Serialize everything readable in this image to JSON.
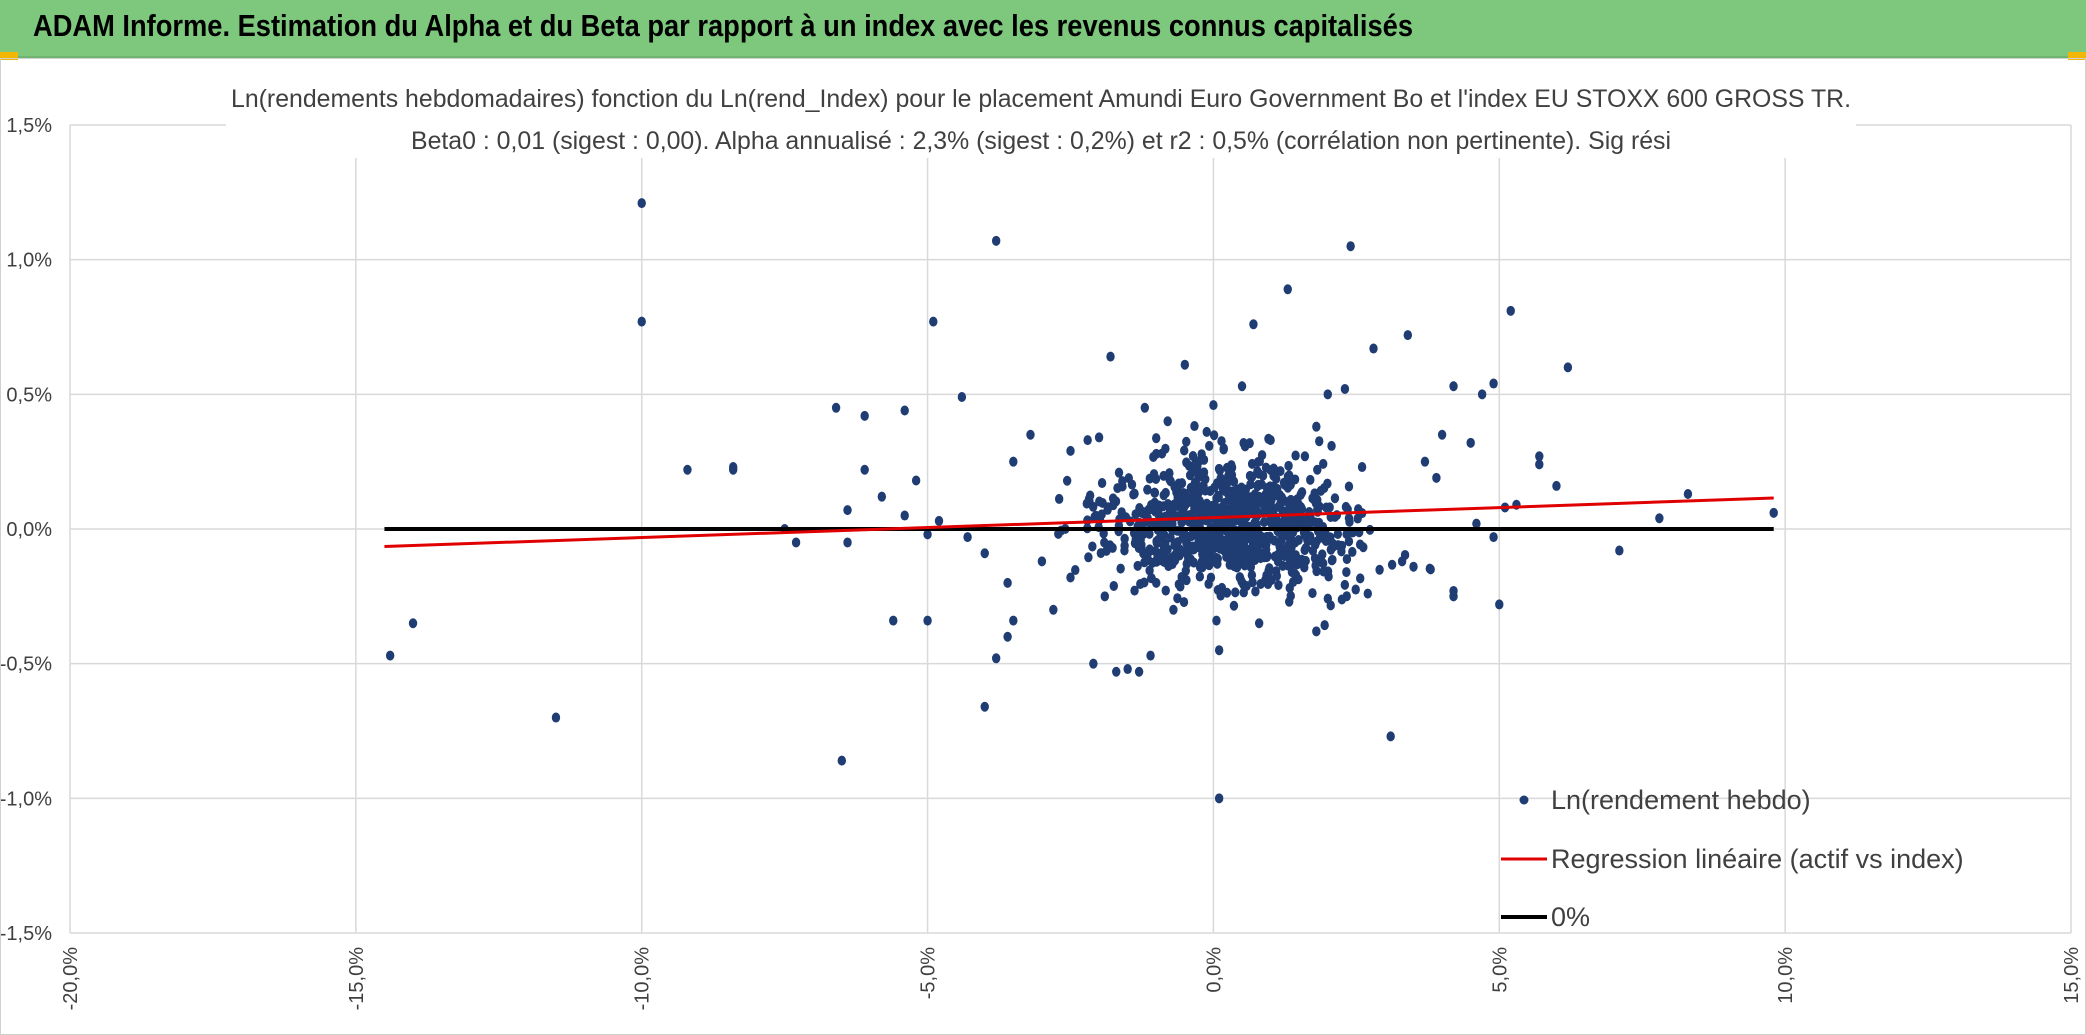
{
  "header": {
    "title": "ADAM Informe. Estimation du Alpha et du Beta par rapport à un index avec les revenus connus capitalisés"
  },
  "colors": {
    "header_bg": "#7dc87d",
    "points": "#1f3c73",
    "regression": "#e00000",
    "zero_line": "#000000",
    "grid": "#d9d9d9"
  },
  "chart_data": {
    "type": "scatter",
    "title_line1": "Ln(rendements hebdomadaires) fonction du Ln(rend_Index) pour le placement Amundi Euro Government Bo et l'index EU STOXX 600 GROSS TR.",
    "title_line2": "Beta0 : 0,01 (sigest : 0,00). Alpha annualisé : 2,3% (sigest : 0,2%) et r2 : 0,5% (corrélation non pertinente). Sig rési",
    "x_ticks": [
      "-20,0%",
      "-15,0%",
      "-10,0%",
      "-5,0%",
      "0,0%",
      "5,0%",
      "10,0%",
      "15,0%"
    ],
    "x_tick_values": [
      -20,
      -15,
      -10,
      -5,
      0,
      5,
      10,
      15
    ],
    "y_ticks": [
      "1,5%",
      "1,0%",
      "0,5%",
      "0,0%",
      "-0,5%",
      "-1,0%",
      "-1,5%"
    ],
    "y_tick_values": [
      1.5,
      1.0,
      0.5,
      0.0,
      -0.5,
      -1.0,
      -1.5
    ],
    "xlim": [
      -20,
      15
    ],
    "ylim": [
      -1.5,
      1.5
    ],
    "grid": true,
    "legend_position": "bottom-right",
    "legend": {
      "points_label": "Ln(rendement hebdo)",
      "regression_label": "Regression linéaire (actif vs index)",
      "zero_label": "0%"
    },
    "regression_line": {
      "x": [
        -14.5,
        9.8
      ],
      "y": [
        -0.065,
        0.115
      ]
    },
    "zero_line": {
      "x": [
        -14.5,
        9.8
      ],
      "y": [
        0,
        0
      ]
    },
    "cloud": {
      "count": 900,
      "center_x": 0.3,
      "center_y": 0.02,
      "spread_x": 1.3,
      "spread_y": 0.14
    },
    "points": [
      [
        -10.0,
        1.21
      ],
      [
        -10.0,
        0.77
      ],
      [
        -3.8,
        1.07
      ],
      [
        -4.9,
        0.77
      ],
      [
        2.4,
        1.05
      ],
      [
        1.3,
        0.89
      ],
      [
        0.7,
        0.76
      ],
      [
        -1.8,
        0.64
      ],
      [
        -0.5,
        0.61
      ],
      [
        0.5,
        0.53
      ],
      [
        2.8,
        0.67
      ],
      [
        3.4,
        0.72
      ],
      [
        5.2,
        0.81
      ],
      [
        6.2,
        0.6
      ],
      [
        4.9,
        0.54
      ],
      [
        4.7,
        0.5
      ],
      [
        4.2,
        0.53
      ],
      [
        -4.4,
        0.49
      ],
      [
        -5.4,
        0.44
      ],
      [
        -6.6,
        0.45
      ],
      [
        -6.1,
        0.42
      ],
      [
        -9.2,
        0.22
      ],
      [
        -8.4,
        0.23
      ],
      [
        -8.4,
        0.22
      ],
      [
        -5.2,
        0.18
      ],
      [
        -6.1,
        0.22
      ],
      [
        -5.8,
        0.12
      ],
      [
        -6.4,
        0.07
      ],
      [
        -5.4,
        0.05
      ],
      [
        -4.8,
        0.03
      ],
      [
        -4.3,
        -0.03
      ],
      [
        -7.5,
        0.0
      ],
      [
        -7.3,
        -0.05
      ],
      [
        -6.4,
        -0.05
      ],
      [
        -5.0,
        -0.02
      ],
      [
        -4.0,
        -0.09
      ],
      [
        -3.6,
        -0.2
      ],
      [
        -3.5,
        -0.34
      ],
      [
        -3.8,
        -0.48
      ],
      [
        -4.0,
        -0.66
      ],
      [
        -6.5,
        -0.86
      ],
      [
        -11.5,
        -0.7
      ],
      [
        -14.4,
        -0.47
      ],
      [
        -14.0,
        -0.35
      ],
      [
        -5.6,
        -0.34
      ],
      [
        -5.0,
        -0.34
      ],
      [
        -3.6,
        -0.4
      ],
      [
        -2.1,
        -0.5
      ],
      [
        -1.7,
        -0.53
      ],
      [
        -1.5,
        -0.52
      ],
      [
        -1.3,
        -0.53
      ],
      [
        -1.1,
        -0.47
      ],
      [
        0.1,
        -0.45
      ],
      [
        0.1,
        -1.0
      ],
      [
        3.1,
        -0.77
      ],
      [
        5.0,
        -0.28
      ],
      [
        4.2,
        -0.25
      ],
      [
        4.2,
        -0.23
      ],
      [
        3.8,
        -0.15
      ],
      [
        3.5,
        -0.14
      ],
      [
        7.1,
        -0.08
      ],
      [
        4.9,
        -0.03
      ],
      [
        4.6,
        0.02
      ],
      [
        5.1,
        0.08
      ],
      [
        5.3,
        0.09
      ],
      [
        5.7,
        0.27
      ],
      [
        5.7,
        0.24
      ],
      [
        6.0,
        0.16
      ],
      [
        7.8,
        0.04
      ],
      [
        8.3,
        0.13
      ],
      [
        9.8,
        0.06
      ],
      [
        4.5,
        0.32
      ],
      [
        4.0,
        0.35
      ],
      [
        3.7,
        0.25
      ],
      [
        2.0,
        0.5
      ],
      [
        2.3,
        0.52
      ],
      [
        1.8,
        0.38
      ],
      [
        1.0,
        0.33
      ],
      [
        -2.2,
        0.33
      ],
      [
        -2.0,
        0.34
      ],
      [
        -3.2,
        0.35
      ],
      [
        -3.5,
        0.25
      ],
      [
        -2.5,
        0.29
      ],
      [
        -1.2,
        0.45
      ],
      [
        -0.8,
        0.4
      ],
      [
        -0.9,
        0.28
      ],
      [
        0.0,
        0.46
      ],
      [
        1.6,
        0.27
      ],
      [
        2.6,
        0.23
      ],
      [
        3.9,
        0.19
      ],
      [
        -2.8,
        -0.3
      ],
      [
        -1.9,
        -0.25
      ],
      [
        -0.7,
        -0.3
      ],
      [
        0.8,
        -0.35
      ],
      [
        1.8,
        -0.38
      ],
      [
        2.7,
        -0.24
      ],
      [
        -2.5,
        -0.18
      ],
      [
        3.3,
        -0.12
      ],
      [
        -3.0,
        -0.12
      ],
      [
        -1.0,
        -0.2
      ]
    ]
  }
}
